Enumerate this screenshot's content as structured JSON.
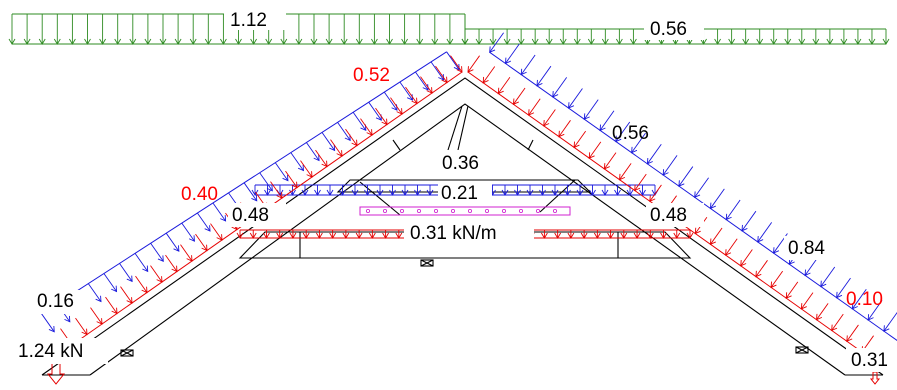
{
  "colors": {
    "snow": "#2e8b22",
    "wind_pressure": "#1a1adc",
    "wind_suction": "#e60000",
    "internal": "#d020d0",
    "structure": "#000000",
    "red_label": "#ff0000",
    "black_label": "#000000"
  },
  "labels": {
    "snow_left": "1.12",
    "snow_right": "0.56",
    "red_top": "0.52",
    "blue_right_upper": "0.56",
    "strut": "0.36",
    "collar_load": "0.21",
    "red_left_mid": "0.40",
    "left_mid": "0.48",
    "right_mid": "0.48",
    "tie_load": "0.31 kN/m",
    "blue_right_lower": "0.84",
    "left_lower": "0.16",
    "red_right_lower": "0.10",
    "left_point": "1.24 kN",
    "right_point": "0.31"
  }
}
